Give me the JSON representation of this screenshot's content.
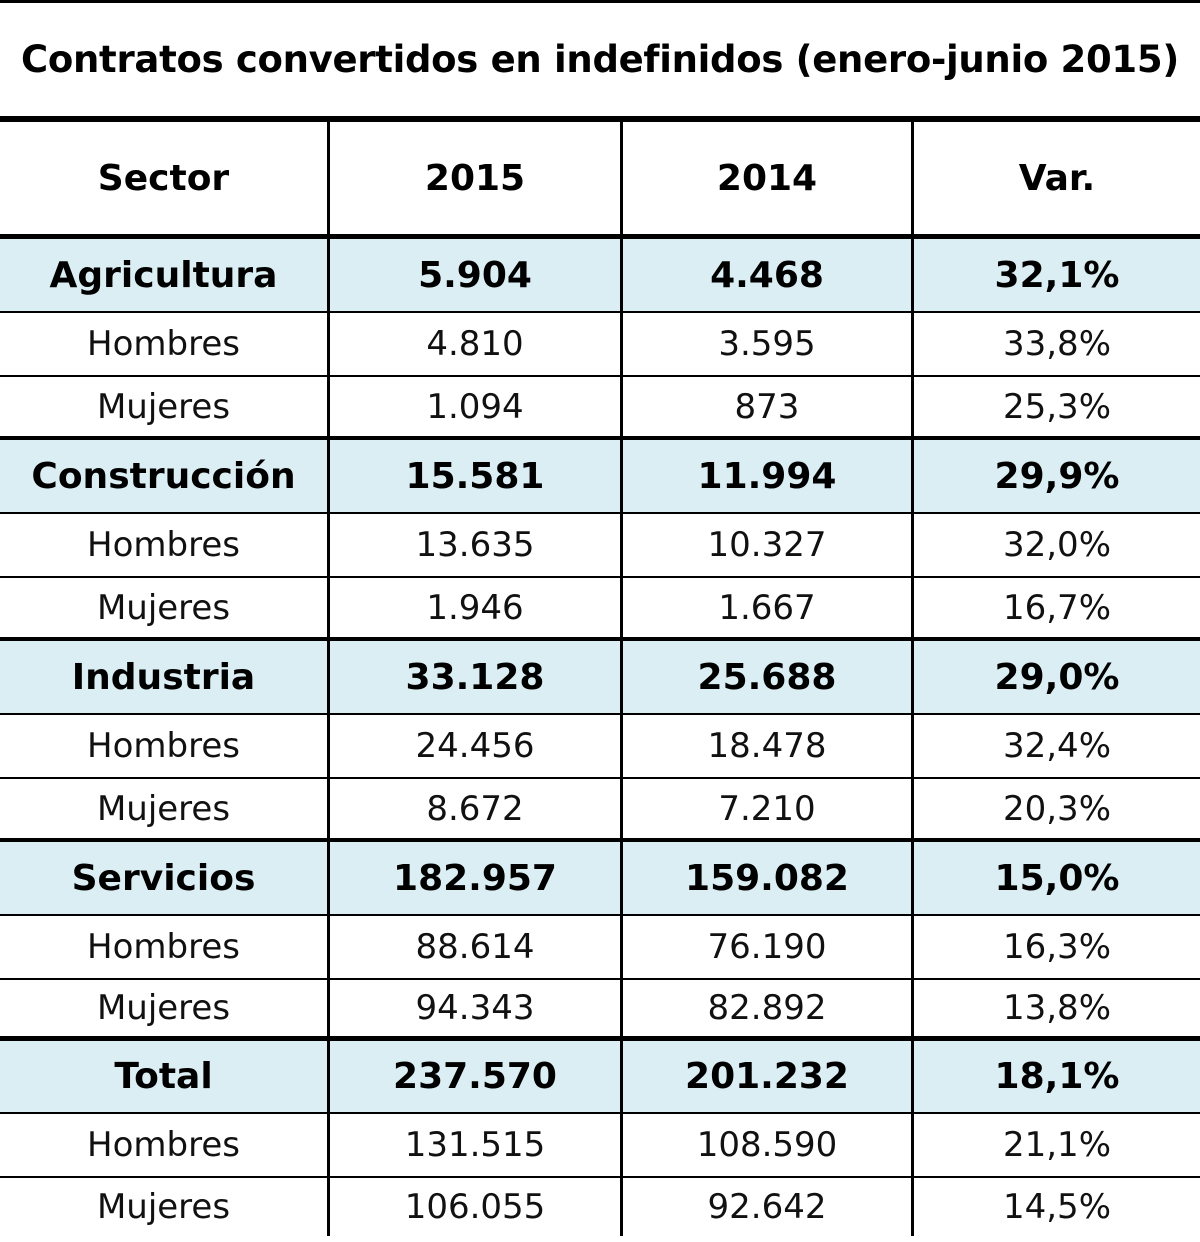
{
  "title": "Contratos convertidos en indefinidos (enero-junio 2015)",
  "header": [
    "Sector",
    "2015",
    "2014",
    "Var."
  ],
  "accent_bg": "#daeef3",
  "groups": [
    {
      "sector": [
        "Agricultura",
        "5.904",
        "4.468",
        "32,1%"
      ],
      "rows": [
        [
          "Hombres",
          "4.810",
          "3.595",
          "33,8%"
        ],
        [
          "Mujeres",
          "1.094",
          "873",
          "25,3%"
        ]
      ]
    },
    {
      "sector": [
        "Construcción",
        "15.581",
        "11.994",
        "29,9%"
      ],
      "rows": [
        [
          "Hombres",
          "13.635",
          "10.327",
          "32,0%"
        ],
        [
          "Mujeres",
          "1.946",
          "1.667",
          "16,7%"
        ]
      ]
    },
    {
      "sector": [
        "Industria",
        "33.128",
        "25.688",
        "29,0%"
      ],
      "rows": [
        [
          "Hombres",
          "24.456",
          "18.478",
          "32,4%"
        ],
        [
          "Mujeres",
          "8.672",
          "7.210",
          "20,3%"
        ]
      ]
    },
    {
      "sector": [
        "Servicios",
        "182.957",
        "159.082",
        "15,0%"
      ],
      "rows": [
        [
          "Hombres",
          "88.614",
          "76.190",
          "16,3%"
        ],
        [
          "Mujeres",
          "94.343",
          "82.892",
          "13,8%"
        ]
      ]
    },
    {
      "sector": [
        "Total",
        "237.570",
        "201.232",
        "18,1%"
      ],
      "rows": [
        [
          "Hombres",
          "131.515",
          "108.590",
          "21,1%"
        ],
        [
          "Mujeres",
          "106.055",
          "92.642",
          "14,5%"
        ]
      ]
    }
  ]
}
